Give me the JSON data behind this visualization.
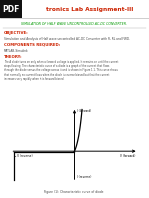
{
  "title_header": "tronics Lab Assignment-III",
  "subtitle": "SIMULATION OF HALF WAVE UNCONTROLLED AC-DC CONVERTER.",
  "section1_title": "OBJECTIVE:",
  "section1_text": "Simulation and Analysis of Half wave uncontrolled AC-DC Converter with R, RL and FWD.",
  "section2_title": "COMPONENTS REQUIRED:",
  "section2_text": "MATLAB-Simulink",
  "section3_title": "THEORY:",
  "theory_lines": [
    "The A diode turns on only when a forward voltage is applied. It remains on until the current",
    "stops flowing. The characteristic curve of a diode is a graph of the current that flows",
    "through the diode versus the voltage across it and is shown in Figure 1.1. This curve shows",
    "that normally no current flows when the diode is reverse biased but that the current",
    "increases very rapidly when it is forward biased."
  ],
  "fig_caption": "Figure (1): Characteristic curve of diode",
  "header_color": "#cc2200",
  "subtitle_color": "#009900",
  "section_title_color": "#cc2200",
  "body_text_color": "#444444",
  "pdf_bg": "#111111",
  "pdf_text": "#ffffff",
  "bg_color": "#ffffff",
  "diode_lw": 0.9,
  "axis_lw": 0.7,
  "label_fontsize": 2.0,
  "caption_fontsize": 2.2,
  "body_fontsize": 2.1,
  "section_title_fontsize": 2.8,
  "header_fontsize": 4.2,
  "pdf_fontsize": 5.5
}
